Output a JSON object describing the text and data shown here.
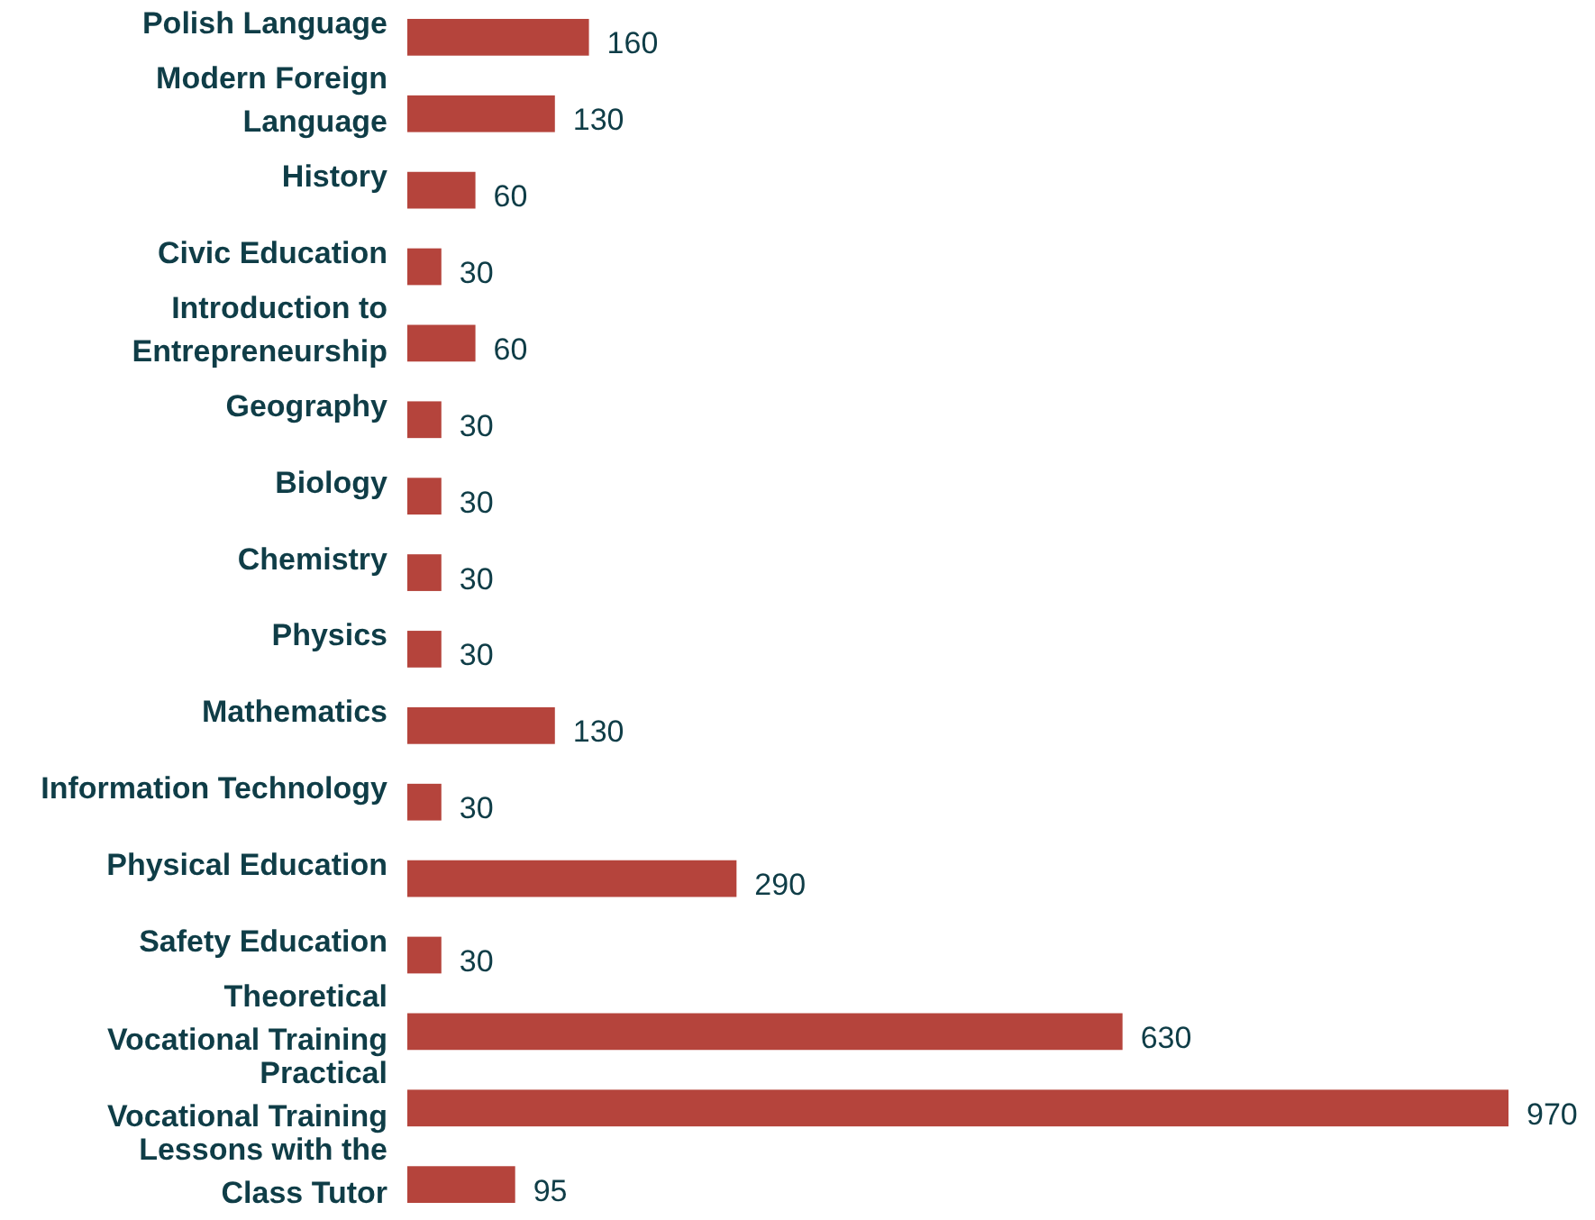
{
  "chart_data": {
    "type": "bar",
    "orientation": "horizontal",
    "tick_labels": "y",
    "data_labels": true,
    "categories": [
      "Polish Language",
      "Modern Foreign Language",
      "History",
      "Civic Education",
      "Introduction to Entrepreneurship",
      "Geography",
      "Biology",
      "Chemistry",
      "Physics",
      "Mathematics",
      "Information Technology",
      "Physical Education",
      "Safety Education",
      "Theoretical Vocational Training",
      "Practical Vocational Training",
      "Lessons with the Class Tutor"
    ],
    "values": [
      160,
      130,
      60,
      30,
      60,
      30,
      30,
      30,
      30,
      130,
      30,
      290,
      30,
      630,
      970,
      95
    ],
    "color": "#b5443c"
  }
}
